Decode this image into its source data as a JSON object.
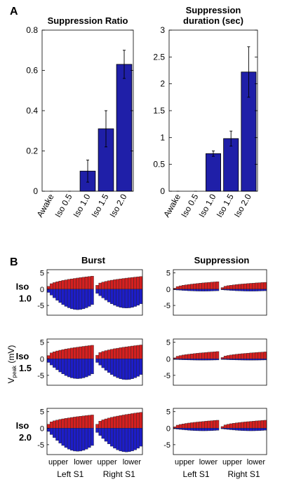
{
  "panel_a_letter": "A",
  "panel_b_letter": "B",
  "chart_data": [
    {
      "type": "bar",
      "title": "Suppression Ratio",
      "categories": [
        "Awake",
        "Iso 0.5",
        "Iso 1.0",
        "Iso 1.5",
        "Iso 2.0"
      ],
      "values": [
        0.0,
        0.0,
        0.1,
        0.31,
        0.63
      ],
      "errors": [
        0.0,
        0.0,
        0.055,
        0.09,
        0.07
      ],
      "yticks": [
        "0",
        "0.2",
        "0.4",
        "0.6",
        "0.8"
      ],
      "ylim": [
        0,
        0.8
      ],
      "bar_color": "#1f1fa8"
    },
    {
      "type": "bar",
      "title": [
        "Suppression",
        "duration (sec)"
      ],
      "categories": [
        "Awake",
        "Iso 0.5",
        "Iso 1.0",
        "Iso 1.5",
        "Iso 2.0"
      ],
      "values": [
        0.0,
        0.0,
        0.7,
        0.98,
        2.22
      ],
      "errors": [
        0.0,
        0.0,
        0.05,
        0.14,
        0.47
      ],
      "yticks": [
        "0",
        "0.5",
        "1",
        "1.5",
        "2",
        "2.5",
        "3"
      ],
      "ylim": [
        0,
        3
      ],
      "bar_color": "#1f1fa8"
    }
  ],
  "panel_b": {
    "column_titles": [
      "Burst",
      "Suppression"
    ],
    "row_labels": [
      [
        "Iso",
        "1.0"
      ],
      [
        "Iso",
        "1.5"
      ],
      [
        "Iso",
        "2.0"
      ]
    ],
    "ylabel": "V",
    "ylabel_sub": "peak",
    "ylabel_unit": " (mV)",
    "yticks": [
      "5",
      "0",
      "-5"
    ],
    "ylim": [
      -8,
      6
    ],
    "xtick_labels": [
      "upper",
      "lower",
      "upper",
      "lower"
    ],
    "region_labels": [
      "Left S1",
      "Right S1"
    ],
    "positive_color": "#d42020",
    "negative_color": "#1d1dc8",
    "channels_per_hemisphere": 16,
    "traces": {
      "burst": [
        {
          "pos_left": [
            0.9,
            4.0
          ],
          "neg_left": [
            -1.0,
            -6.3
          ],
          "pos_right": [
            1.2,
            3.9
          ],
          "neg_right": [
            -1.3,
            -5.8
          ]
        },
        {
          "pos_left": [
            1.0,
            4.1
          ],
          "neg_left": [
            -1.1,
            -6.0
          ],
          "pos_right": [
            1.1,
            4.2
          ],
          "neg_right": [
            -1.1,
            -6.3
          ]
        },
        {
          "pos_left": [
            1.2,
            4.0
          ],
          "neg_left": [
            -1.0,
            -7.0
          ],
          "pos_right": [
            1.2,
            4.8
          ],
          "neg_right": [
            -1.3,
            -7.2
          ]
        }
      ],
      "suppression": [
        {
          "pos_left": [
            0.3,
            2.3
          ],
          "neg_left": [
            -0.2,
            -0.6
          ],
          "pos_right": [
            0.5,
            2.1
          ],
          "neg_right": [
            -0.2,
            -0.6
          ]
        },
        {
          "pos_left": [
            0.3,
            2.2
          ],
          "neg_left": [
            -0.2,
            -0.4
          ],
          "pos_right": [
            0.4,
            2.1
          ],
          "neg_right": [
            -0.2,
            -0.4
          ]
        },
        {
          "pos_left": [
            0.4,
            2.4
          ],
          "neg_left": [
            -0.2,
            -0.8
          ],
          "pos_right": [
            0.5,
            2.4
          ],
          "neg_right": [
            -0.2,
            -0.8
          ]
        }
      ]
    }
  }
}
